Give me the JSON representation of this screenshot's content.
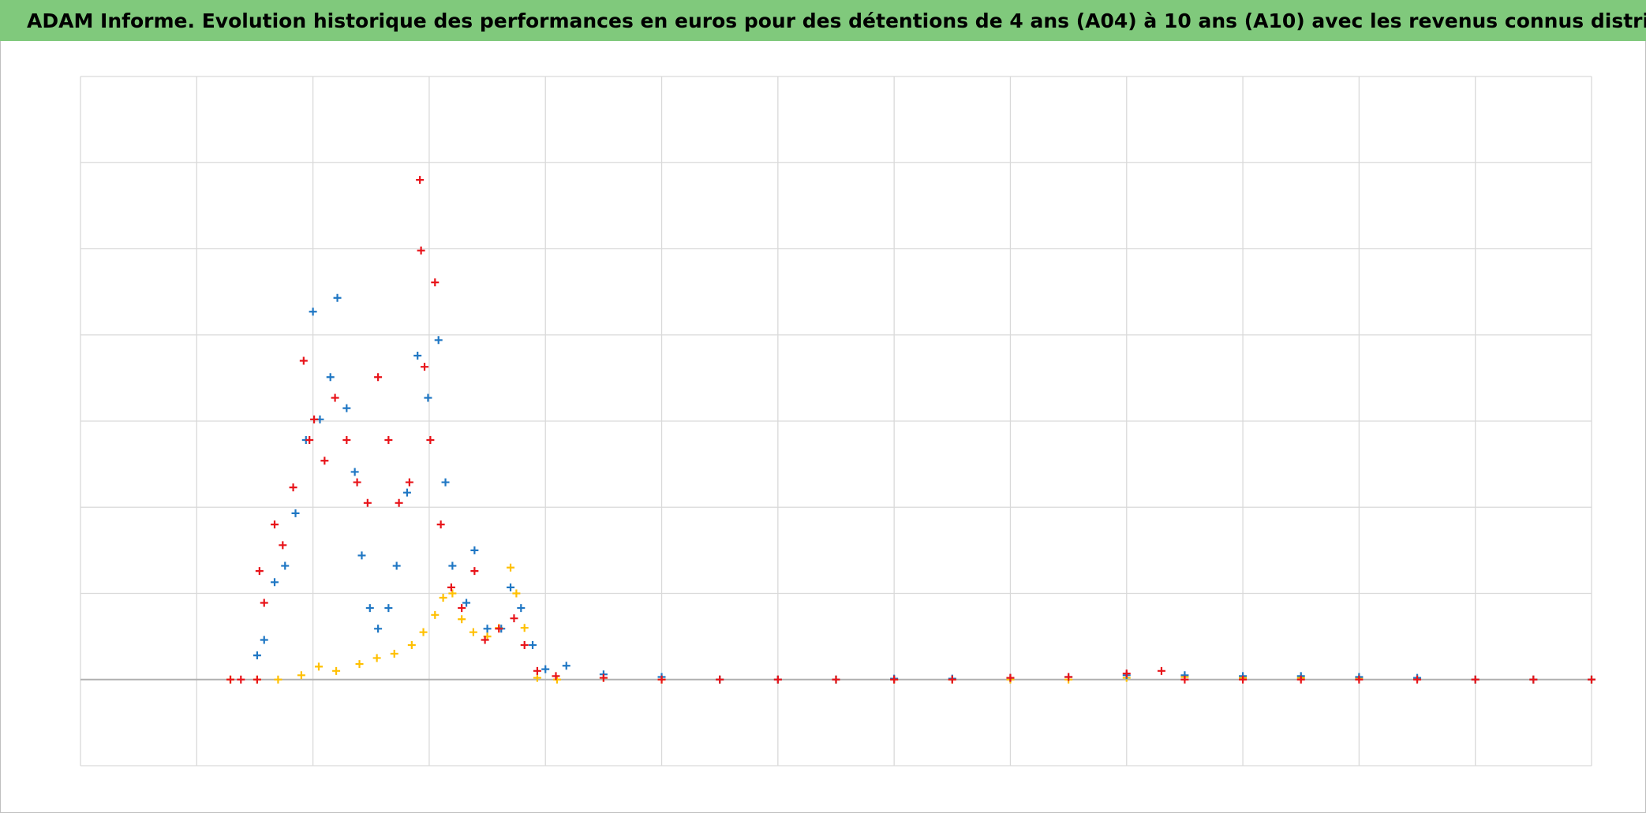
{
  "chart_data": {
    "type": "scatter",
    "title": "ADAM Informe. Evolution historique des performances en euros pour des détentions de 4 ans (A04) à 10 ans (A10) avec les revenus connus distribués",
    "xlim": [
      0,
      13
    ],
    "xticks": [
      0,
      1,
      2,
      3,
      4,
      5,
      6,
      7,
      8,
      9,
      10,
      11,
      12,
      13
    ],
    "ylim": [
      -1,
      7
    ],
    "yticks": [
      -1,
      0,
      1,
      2,
      3,
      4,
      5,
      6,
      7
    ],
    "grid": true,
    "series": [
      {
        "color": "#ffc000",
        "x": [
          1.29,
          1.52,
          1.7,
          1.9,
          2.05,
          2.2,
          2.4,
          2.55,
          2.7,
          2.85,
          2.95,
          3.05,
          3.12,
          3.2,
          3.28,
          3.38,
          3.5,
          3.6,
          3.7,
          3.75,
          3.82,
          3.93,
          4.1,
          4.5,
          5,
          5.5,
          6,
          6.5,
          7,
          7.5,
          8,
          8.5,
          9,
          9.5,
          10,
          10.5,
          11,
          11.5,
          12,
          12.5,
          13
        ],
        "values": [
          0,
          0,
          0,
          0.05,
          0.15,
          0.1,
          0.18,
          0.25,
          0.3,
          0.4,
          0.55,
          0.75,
          0.95,
          1.0,
          0.7,
          0.55,
          0.5,
          0.6,
          1.3,
          1.0,
          0.6,
          0.02,
          0,
          0.02,
          0,
          0,
          0,
          0,
          0,
          0,
          0,
          0,
          0.02,
          0.03,
          0.02,
          0.02,
          0.02,
          0.01,
          0,
          0,
          0
        ]
      },
      {
        "color": "#1f77c4",
        "x": [
          1.52,
          1.58,
          1.67,
          1.76,
          1.85,
          1.94,
          2.0,
          2.06,
          2.15,
          2.21,
          2.29,
          2.36,
          2.42,
          2.49,
          2.56,
          2.65,
          2.72,
          2.81,
          2.9,
          2.99,
          3.08,
          3.14,
          3.2,
          3.32,
          3.39,
          3.5,
          3.62,
          3.7,
          3.79,
          3.89,
          4.0,
          4.18,
          4.5,
          5,
          5.5,
          6,
          6.5,
          7,
          7.5,
          8,
          8.5,
          9,
          9.5,
          10,
          10.5,
          11,
          11.5,
          12,
          12.5,
          13
        ],
        "values": [
          0.28,
          0.46,
          1.13,
          1.32,
          1.93,
          2.78,
          4.27,
          3.02,
          3.51,
          4.43,
          3.15,
          2.41,
          1.44,
          0.83,
          0.59,
          0.83,
          1.32,
          2.17,
          3.76,
          3.27,
          3.94,
          2.29,
          1.32,
          0.89,
          1.5,
          0.59,
          0.59,
          1.07,
          0.83,
          0.4,
          0.12,
          0.16,
          0.06,
          0.03,
          0,
          0,
          0,
          0.01,
          0.01,
          0.02,
          0.03,
          0.05,
          0.05,
          0.04,
          0.04,
          0.03,
          0.02,
          0,
          0,
          0
        ]
      },
      {
        "color": "#e8141a",
        "x": [
          1.29,
          1.38,
          1.52,
          1.54,
          1.58,
          1.67,
          1.74,
          1.83,
          1.92,
          1.97,
          2.01,
          2.1,
          2.19,
          2.29,
          2.38,
          2.47,
          2.56,
          2.65,
          2.74,
          2.83,
          2.92,
          2.93,
          2.96,
          3.01,
          3.05,
          3.1,
          3.19,
          3.28,
          3.39,
          3.48,
          3.6,
          3.73,
          3.82,
          3.93,
          4.09,
          4.5,
          5,
          5.5,
          6,
          6.5,
          7,
          7.5,
          8,
          8.5,
          9,
          9.3,
          9.5,
          10,
          10.5,
          11,
          11.5,
          12,
          12.5,
          13
        ],
        "values": [
          0,
          0,
          0,
          1.26,
          0.89,
          1.8,
          1.56,
          2.23,
          3.7,
          2.78,
          3.02,
          2.54,
          3.27,
          2.78,
          2.29,
          2.05,
          3.51,
          2.78,
          2.05,
          2.29,
          5.8,
          4.98,
          3.63,
          2.78,
          4.61,
          1.8,
          1.07,
          0.83,
          1.26,
          0.46,
          0.59,
          0.71,
          0.4,
          0.1,
          0.04,
          0.02,
          0,
          0,
          0,
          0,
          0,
          0,
          0.02,
          0.03,
          0.07,
          0.1,
          0,
          0,
          0,
          0,
          0,
          0,
          0,
          0
        ]
      }
    ]
  }
}
